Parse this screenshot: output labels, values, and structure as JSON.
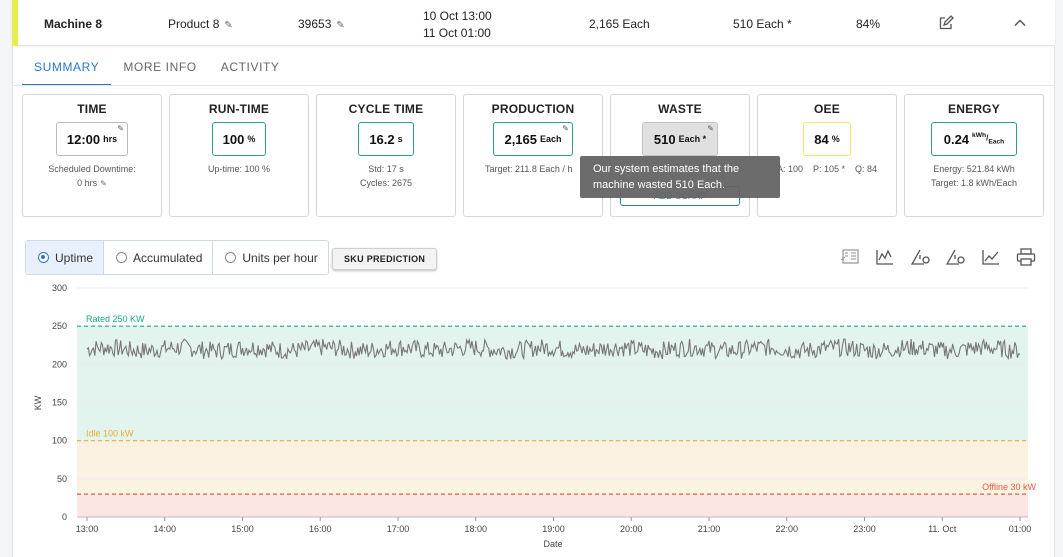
{
  "row": {
    "machine": "Machine 8",
    "product": "Product 8",
    "order": "39653",
    "start": "10 Oct 13:00",
    "end": "11 Oct 01:00",
    "produced": "2,165 Each",
    "waste": "510 Each *",
    "oee": "84%",
    "accent_color": "#e6ee4b"
  },
  "tabs": [
    "SUMMARY",
    "MORE INFO",
    "ACTIVITY"
  ],
  "cards": {
    "time": {
      "title": "TIME",
      "value": "12:00",
      "unit": "hrs",
      "sub1": "Scheduled Downtime:",
      "sub2": "0 hrs"
    },
    "runtime": {
      "title": "RUN-TIME",
      "value": "100",
      "unit": "%",
      "sub1": "Up-time: 100 %"
    },
    "cycle": {
      "title": "CYCLE TIME",
      "value": "16.2",
      "unit": "s",
      "sub1": "Std: 17 s",
      "sub2": "Cycles: 2675"
    },
    "production": {
      "title": "PRODUCTION",
      "value": "2,165",
      "unit": "Each",
      "sub1": "Target: 211.8 Each / h"
    },
    "waste": {
      "title": "WASTE",
      "value": "510",
      "unit": "Each *",
      "button": "ADD SCRAP"
    },
    "oee": {
      "title": "OEE",
      "value": "84",
      "unit": "%",
      "a": "A: 100",
      "p": "P: 105 *",
      "q": "Q: 84"
    },
    "energy": {
      "title": "ENERGY",
      "value": "0.24",
      "unit_top": "kWh",
      "unit_bottom": "Each",
      "sub1": "Energy: 521.84 kWh",
      "sub2": "Target: 1.8 kWh/Each"
    }
  },
  "tooltip": {
    "line1": "Our system estimates that the",
    "line2": "machine wasted 510 Each."
  },
  "toolbar": {
    "options": [
      "Uptime",
      "Accumulated",
      "Units per hour"
    ],
    "selected": "Uptime",
    "sku_button": "SKU PREDICTION",
    "icons": [
      "report-icon",
      "chart-settings-icon",
      "warning-settings-icon",
      "alert-settings-icon",
      "trend-icon",
      "print-icon"
    ]
  },
  "chart_data": {
    "type": "line",
    "ylabel": "KW",
    "xlabel": "Date",
    "ylim": [
      0,
      300
    ],
    "yticks": [
      0,
      50,
      100,
      150,
      200,
      250,
      300
    ],
    "xticks": [
      "13:00",
      "14:00",
      "15:00",
      "16:00",
      "17:00",
      "18:00",
      "19:00",
      "20:00",
      "21:00",
      "22:00",
      "23:00",
      "11. Oct",
      "01:00"
    ],
    "x_range": [
      "2023-10-10T13:00",
      "2023-10-11T01:00"
    ],
    "series": [
      {
        "values_summary": {
          "mean": 220,
          "min": 207,
          "max": 233
        },
        "color": "#777777"
      }
    ],
    "thresholds": [
      {
        "label": "Rated 250 KW",
        "value": 250,
        "color": "#1aaa84"
      },
      {
        "label": "Idle 100 kW",
        "value": 100,
        "color": "#e6b030"
      },
      {
        "label": "Offline 30 kW",
        "value": 30,
        "color": "#e45a4a"
      }
    ],
    "bands": [
      {
        "from": 100,
        "to": 250,
        "color": "#e3f3ee"
      },
      {
        "from": 30,
        "to": 100,
        "color": "#fbf3e2"
      },
      {
        "from": 0,
        "to": 30,
        "color": "#fbe6e4"
      }
    ]
  }
}
